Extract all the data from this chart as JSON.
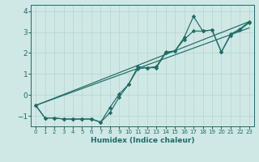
{
  "xlabel": "Humidex (Indice chaleur)",
  "xlim": [
    -0.5,
    23.5
  ],
  "ylim": [
    -1.5,
    4.3
  ],
  "xticks": [
    0,
    1,
    2,
    3,
    4,
    5,
    6,
    7,
    8,
    9,
    10,
    11,
    12,
    13,
    14,
    15,
    16,
    17,
    18,
    19,
    20,
    21,
    22,
    23
  ],
  "yticks": [
    -1,
    0,
    1,
    2,
    3,
    4
  ],
  "background_color": "#cfe8e5",
  "grid_color": "#b8d8d5",
  "line_color": "#1f6b65",
  "line1_x": [
    0,
    1,
    2,
    3,
    4,
    5,
    6,
    7,
    8,
    9,
    10,
    11,
    12,
    13,
    14,
    15,
    16,
    17,
    18,
    19,
    20,
    21,
    22,
    23
  ],
  "line1_y": [
    -0.5,
    -1.1,
    -1.1,
    -1.15,
    -1.15,
    -1.15,
    -1.15,
    -1.3,
    -0.85,
    -0.1,
    0.5,
    1.35,
    1.3,
    1.35,
    2.05,
    2.1,
    2.75,
    3.75,
    3.05,
    3.1,
    2.05,
    2.9,
    3.15,
    3.5
  ],
  "line2_x": [
    0,
    1,
    2,
    3,
    4,
    5,
    6,
    7,
    8,
    9,
    10,
    11,
    12,
    13,
    14,
    15,
    16,
    17,
    18,
    19,
    20,
    21,
    22,
    23
  ],
  "line2_y": [
    -0.5,
    -1.1,
    -1.1,
    -1.15,
    -1.15,
    -1.15,
    -1.15,
    -1.3,
    -0.6,
    0.05,
    0.5,
    1.25,
    1.3,
    1.3,
    2.0,
    2.1,
    2.65,
    3.05,
    3.05,
    3.1,
    2.05,
    2.85,
    3.1,
    3.45
  ],
  "line3_x": [
    0,
    23
  ],
  "line3_y": [
    -0.5,
    3.5
  ],
  "line4_x": [
    0,
    23
  ],
  "line4_y": [
    -0.5,
    3.2
  ]
}
